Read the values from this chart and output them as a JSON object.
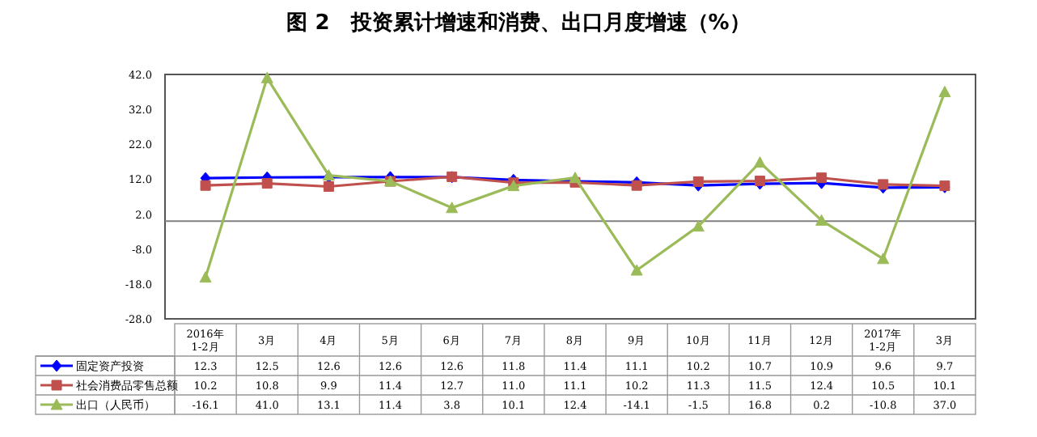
{
  "chart_data": {
    "type": "line",
    "title": "图 2　投资累计增速和消费、出口月度增速（%）",
    "categories": [
      "2016年\n1-2月",
      "3月",
      "4月",
      "5月",
      "6月",
      "7月",
      "8月",
      "9月",
      "10月",
      "11月",
      "12月",
      "2017年\n1-2月",
      "3月"
    ],
    "series": [
      {
        "name": "固定资产投资",
        "color": "#0000ff",
        "marker": "diamond",
        "values": [
          12.3,
          12.5,
          12.6,
          12.6,
          12.6,
          11.8,
          11.4,
          11.1,
          10.2,
          10.7,
          10.9,
          9.6,
          9.7
        ],
        "value_labels": [
          "12.3",
          "12.5",
          "12.6",
          "12.6",
          "12.6",
          "11.8",
          "11.4",
          "11.1",
          "10.2",
          "10.7",
          "10.9",
          "9.6",
          "9.7"
        ]
      },
      {
        "name": "社会消费品零售总额",
        "color": "#c0504d",
        "marker": "square",
        "values": [
          10.2,
          10.8,
          9.9,
          11.4,
          12.7,
          11.0,
          11.1,
          10.2,
          11.3,
          11.5,
          12.4,
          10.5,
          10.1
        ],
        "value_labels": [
          "10.2",
          "10.8",
          "9.9",
          "11.4",
          "12.7",
          "11.0",
          "11.1",
          "10.2",
          "11.3",
          "11.5",
          "12.4",
          "10.5",
          "10.1"
        ]
      },
      {
        "name": "出口（人民币）",
        "color": "#9bbb59",
        "marker": "triangle",
        "values": [
          -16.1,
          41.0,
          13.1,
          11.4,
          3.8,
          10.1,
          12.4,
          -14.1,
          -1.5,
          16.8,
          0.2,
          -10.8,
          37.0
        ],
        "value_labels": [
          "-16.1",
          "41.0",
          "13.1",
          "11.4",
          "3.8",
          "10.1",
          "12.4",
          "-14.1",
          "-1.5",
          "16.8",
          "0.2",
          "-10.8",
          "37.0"
        ]
      }
    ],
    "ylim": [
      -28,
      42
    ],
    "yticks": [
      {
        "value": 42,
        "label": "42.0"
      },
      {
        "value": 32,
        "label": "32.0"
      },
      {
        "value": 22,
        "label": "22.0"
      },
      {
        "value": 12,
        "label": "12.0"
      },
      {
        "value": 2,
        "label": "2.0"
      },
      {
        "value": -8,
        "label": "-8.0"
      },
      {
        "value": -18,
        "label": "-18.0"
      },
      {
        "value": -28,
        "label": "-28.0"
      }
    ],
    "ref_lines": [
      {
        "axis": "y",
        "value": 0,
        "color": "#808080"
      }
    ],
    "grid": false,
    "legend": "bottom"
  }
}
